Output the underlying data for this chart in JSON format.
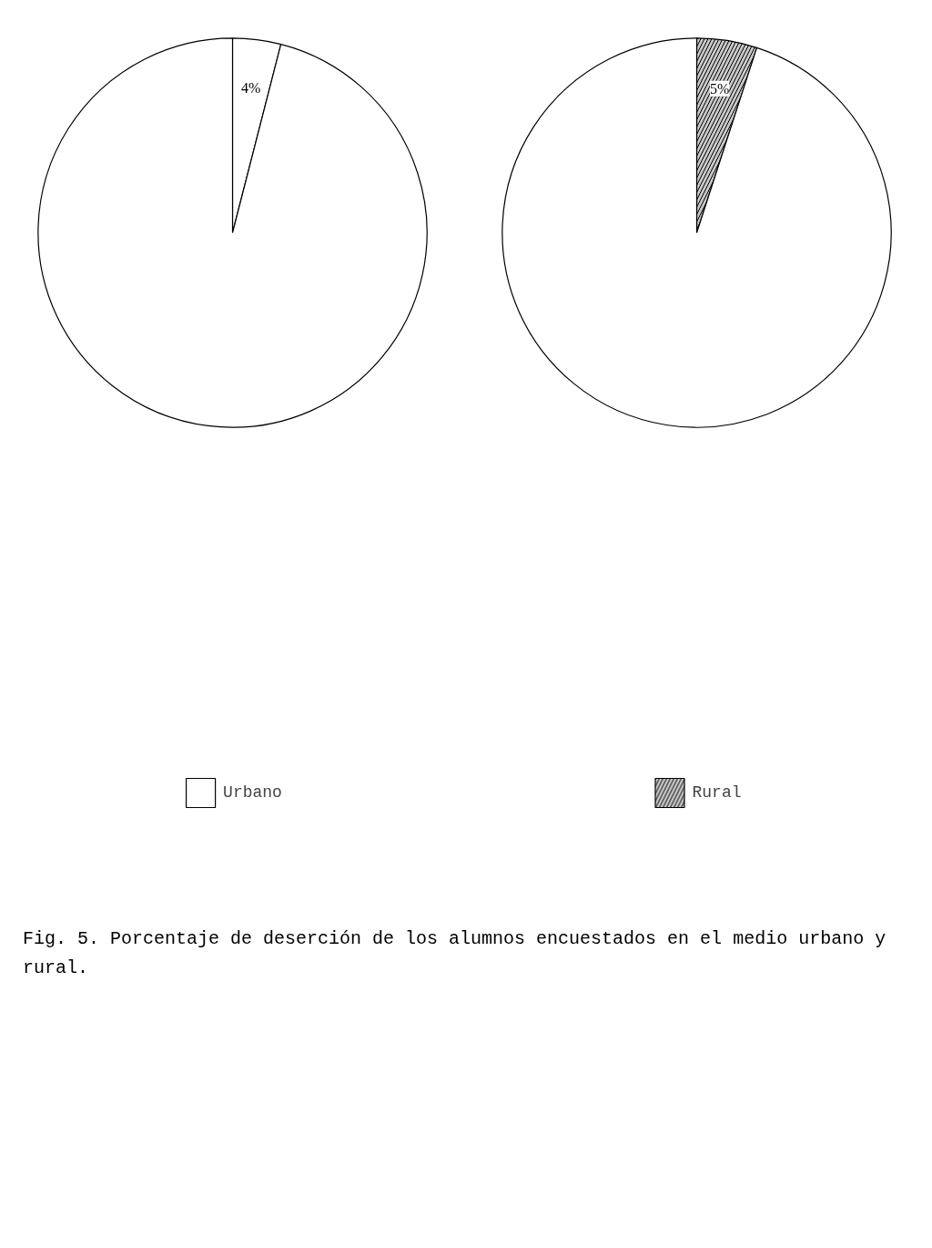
{
  "chart_data": [
    {
      "type": "pie",
      "categories": [
        "Urbano",
        null
      ],
      "values": [
        4,
        96
      ],
      "colors": [
        "#ffffff",
        "#ffffff"
      ],
      "value_labels": [
        "4%",
        null
      ],
      "legend": "bottom"
    },
    {
      "type": "pie",
      "categories": [
        "Rural",
        null
      ],
      "values": [
        5,
        95
      ],
      "colors": [
        "#c8c8c8",
        "#ffffff"
      ],
      "value_labels": [
        "5%",
        null
      ],
      "legend": "bottom"
    },
    {
      "type": "other",
      "annotations": [
        "Fig. 5. Porcentaje de deserción de los alumnos encuestados en el medio urbano y rural."
      ]
    }
  ]
}
